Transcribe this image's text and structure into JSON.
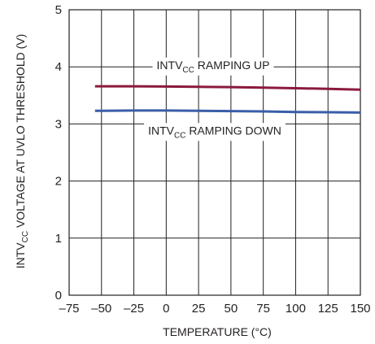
{
  "chart_data": {
    "type": "line",
    "xlabel": "TEMPERATURE (°C)",
    "ylabel": {
      "main": "INTV",
      "sub": "CC",
      "rest": " VOLTAGE AT UVLO THRESHOLD (V)"
    },
    "xlim": [
      -75,
      150
    ],
    "ylim": [
      0,
      5
    ],
    "x_ticks": [
      -75,
      -50,
      -25,
      0,
      25,
      50,
      75,
      100,
      125,
      150
    ],
    "x_tick_labels": [
      "–75",
      "–50",
      "–25",
      "0",
      "25",
      "50",
      "75",
      "100",
      "125",
      "150"
    ],
    "y_ticks": [
      0,
      1,
      2,
      3,
      4,
      5
    ],
    "y_tick_labels": [
      "0",
      "1",
      "2",
      "3",
      "4",
      "5"
    ],
    "grid": true,
    "legend": "none",
    "series": [
      {
        "label_main": "INTV",
        "label_sub": "CC",
        "label_rest": " RAMPING UP",
        "color": "#8b1a3d",
        "x": [
          -55,
          -25,
          0,
          25,
          50,
          75,
          100,
          125,
          150
        ],
        "y": [
          3.66,
          3.66,
          3.655,
          3.65,
          3.645,
          3.635,
          3.625,
          3.615,
          3.6
        ]
      },
      {
        "label_main": "INTV",
        "label_sub": "CC",
        "label_rest": " RAMPING DOWN",
        "color": "#3a5ea8",
        "x": [
          -55,
          -25,
          0,
          25,
          50,
          75,
          100,
          125,
          150
        ],
        "y": [
          3.23,
          3.235,
          3.235,
          3.23,
          3.225,
          3.22,
          3.21,
          3.205,
          3.2
        ]
      }
    ]
  }
}
